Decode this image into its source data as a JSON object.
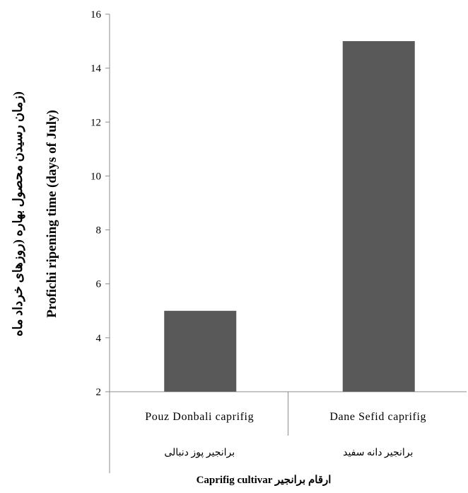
{
  "chart_data": {
    "type": "bar",
    "categories": [
      "Pouz Donbali caprifig",
      "Dane Sefid caprifig"
    ],
    "categories_fa": [
      "برانجیر پوز دنبالی",
      "برانجیر دانه سفید"
    ],
    "values": [
      5,
      15
    ],
    "ylim": [
      2,
      16
    ],
    "yticks": [
      2,
      4,
      6,
      8,
      10,
      12,
      14,
      16
    ],
    "ylabel": "Profichi ripening time (days of July)",
    "ylabel_fa": "(زمان رسیدن محصول بهاره (روزهای خرداد ماه",
    "xlabel": "Caprifig cultivar ارقام برانجیر",
    "bar_color": "#595959",
    "grid": false,
    "legend": "none"
  }
}
